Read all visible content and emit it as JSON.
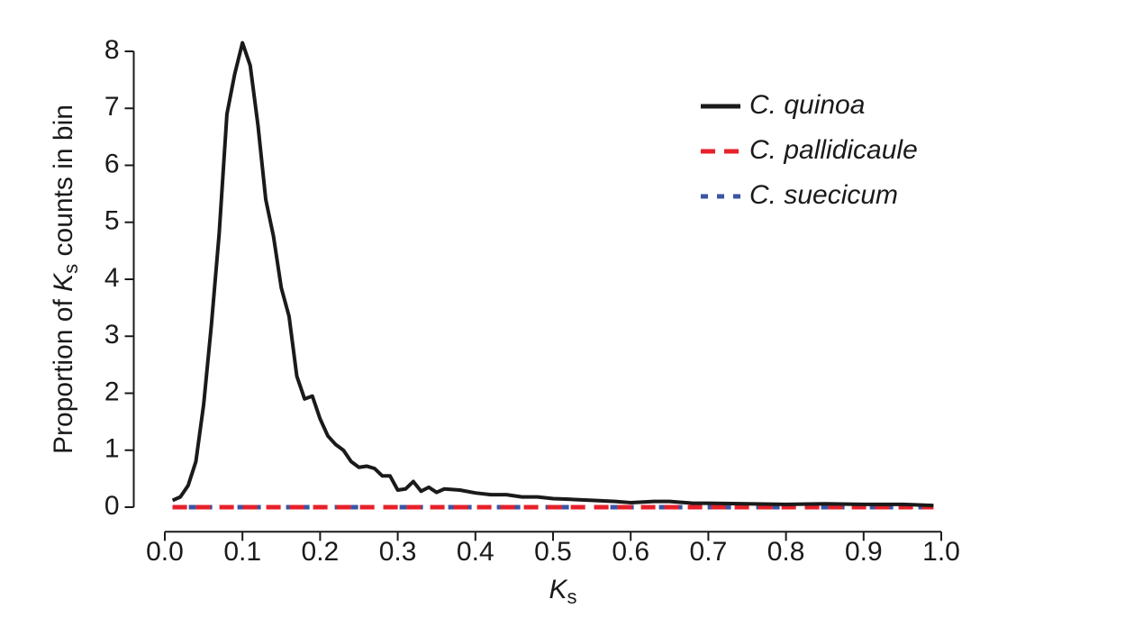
{
  "chart_data": {
    "type": "line",
    "x_label": {
      "var": "K",
      "sub": "s"
    },
    "y_label": {
      "prefix": "Proportion of ",
      "var": "K",
      "sub": "s",
      "suffix": " counts in bin"
    },
    "xlim": [
      -0.04,
      1.04
    ],
    "ylim": [
      -0.4,
      8.4
    ],
    "xticks": [
      {
        "value": 0,
        "label": "0.0"
      },
      0.1,
      0.2,
      0.3,
      0.4,
      0.5,
      0.6,
      0.7,
      0.8,
      0.9,
      {
        "value": 1,
        "label": "1.0"
      }
    ],
    "yticks": [
      0,
      1,
      2,
      3,
      4,
      5,
      6,
      7,
      8
    ],
    "legend": "top-right",
    "series": [
      {
        "name": "C. quinoa",
        "color": "#1a1a1a",
        "style": "solid",
        "x": [
          0.01,
          0.02,
          0.03,
          0.04,
          0.05,
          0.06,
          0.07,
          0.08,
          0.09,
          0.1,
          0.11,
          0.12,
          0.13,
          0.14,
          0.15,
          0.16,
          0.17,
          0.18,
          0.19,
          0.2,
          0.21,
          0.22,
          0.23,
          0.24,
          0.25,
          0.26,
          0.27,
          0.28,
          0.29,
          0.3,
          0.31,
          0.32,
          0.33,
          0.34,
          0.35,
          0.36,
          0.38,
          0.4,
          0.42,
          0.44,
          0.46,
          0.48,
          0.5,
          0.52,
          0.55,
          0.58,
          0.6,
          0.63,
          0.65,
          0.68,
          0.7,
          0.75,
          0.8,
          0.85,
          0.9,
          0.95,
          0.99
        ],
        "values": [
          0.12,
          0.18,
          0.38,
          0.8,
          1.8,
          3.2,
          4.8,
          6.9,
          7.6,
          8.15,
          7.75,
          6.7,
          5.4,
          4.75,
          3.85,
          3.35,
          2.3,
          1.9,
          1.95,
          1.55,
          1.25,
          1.1,
          1.0,
          0.8,
          0.7,
          0.72,
          0.68,
          0.55,
          0.55,
          0.3,
          0.32,
          0.45,
          0.28,
          0.35,
          0.26,
          0.32,
          0.3,
          0.25,
          0.22,
          0.22,
          0.18,
          0.18,
          0.15,
          0.14,
          0.12,
          0.1,
          0.08,
          0.1,
          0.1,
          0.07,
          0.07,
          0.06,
          0.05,
          0.06,
          0.05,
          0.05,
          0.03
        ]
      },
      {
        "name": "C. pallidicaule",
        "color": "#e8202a",
        "style": "dashed",
        "x": [
          0.01,
          0.99
        ],
        "values": [
          0,
          0
        ]
      },
      {
        "name": "C. suecicum",
        "color": "#3a55a4",
        "style": "dotted",
        "x": [
          0.01,
          0.99
        ],
        "values": [
          0,
          0
        ]
      }
    ]
  }
}
